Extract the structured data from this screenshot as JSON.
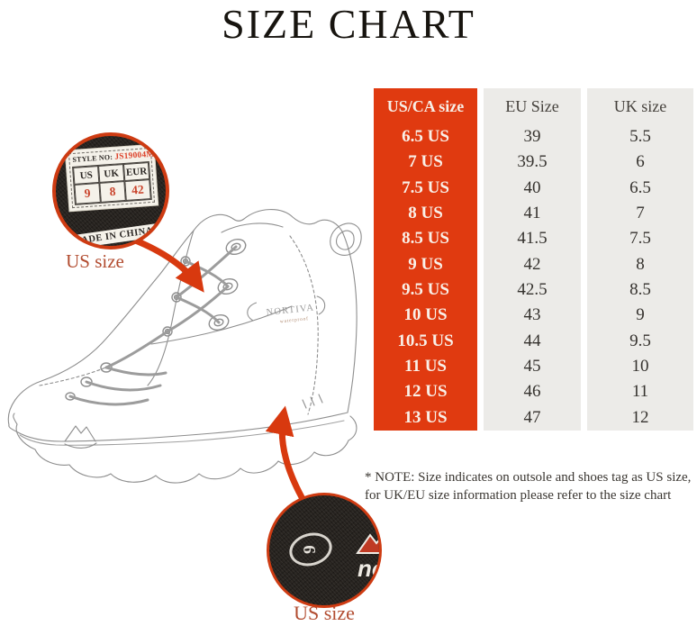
{
  "page": {
    "title": "SIZE CHART"
  },
  "colors": {
    "accent": "#E03A10",
    "circle_border": "#CE3B12",
    "label_red": "#B24C30",
    "col_bg": "#ECEBE8"
  },
  "size_table": {
    "columns": [
      "US/CA size",
      "EU Size",
      "UK size"
    ],
    "rows": [
      [
        "6.5 US",
        "39",
        "5.5"
      ],
      [
        "7 US",
        "39.5",
        "6"
      ],
      [
        "7.5 US",
        "40",
        "6.5"
      ],
      [
        "8 US",
        "41",
        "7"
      ],
      [
        "8.5 US",
        "41.5",
        "7.5"
      ],
      [
        "9 US",
        "42",
        "8"
      ],
      [
        "9.5 US",
        "42.5",
        "8.5"
      ],
      [
        "10 US",
        "43",
        "9"
      ],
      [
        "10.5 US",
        "44",
        "9.5"
      ],
      [
        "11 US",
        "45",
        "10"
      ],
      [
        "12 US",
        "46",
        "11"
      ],
      [
        "13 US",
        "47",
        "12"
      ]
    ]
  },
  "tag_detail": {
    "style_no_label": "STYLE NO:",
    "style_no_value": "JS19004M",
    "size_headers": [
      "US",
      "UK",
      "EUR"
    ],
    "size_values": [
      "9",
      "8",
      "42"
    ],
    "made_in": "MADE IN CHINA",
    "caption": "US size"
  },
  "insole_detail": {
    "size_value": "9",
    "brand_fragment": "no",
    "caption": "US size"
  },
  "boot": {
    "brand_text": "NORTIVA",
    "sub_text": "waterproof"
  },
  "note": {
    "line1": "* NOTE: Size indicates on outsole and shoes tag as US size,",
    "line2": "for UK/EU size information please refer to the size chart"
  }
}
